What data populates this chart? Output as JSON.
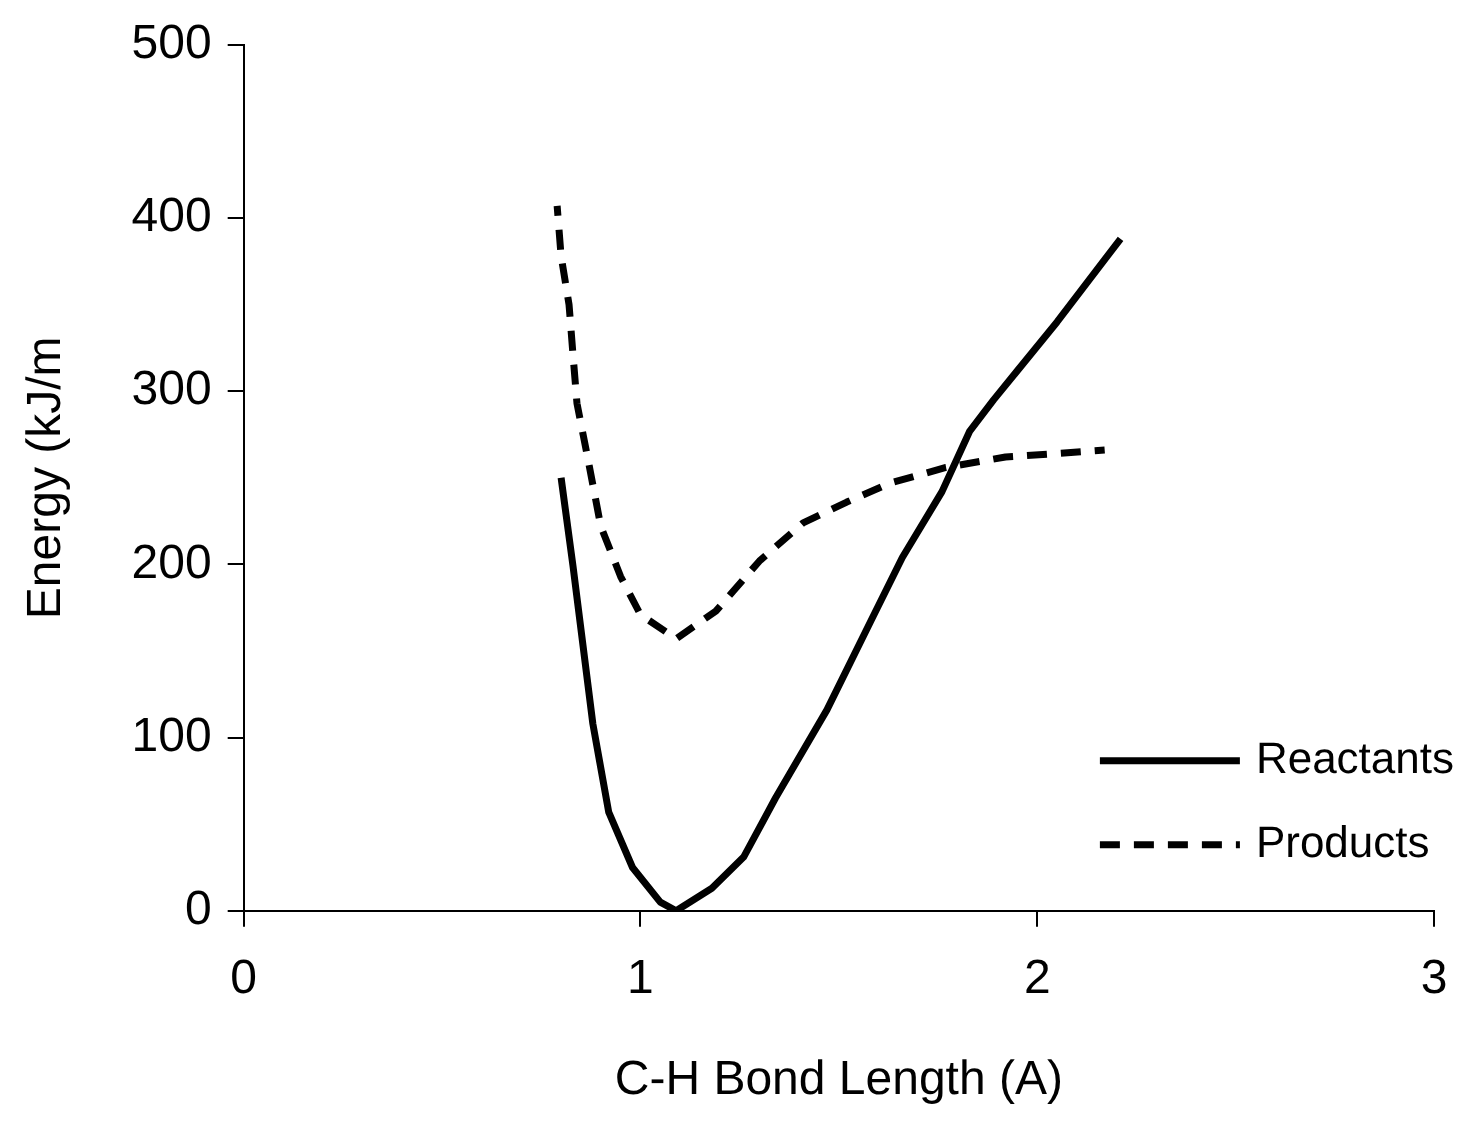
{
  "chart_data": {
    "type": "line",
    "xlabel": "C-H Bond Length (A)",
    "ylabel": "Energy (kJ/m",
    "xlim": [
      0,
      3
    ],
    "xticks": [
      0,
      1,
      2,
      3
    ],
    "ylim": [
      0,
      500
    ],
    "yticks": [
      0,
      100,
      200,
      300,
      400,
      500
    ],
    "grid": false,
    "legend": "bottom right",
    "marker": "none",
    "series": [
      {
        "name": "Reactants",
        "color": "#000000",
        "line_style": "solid",
        "x": [
          0.8,
          0.83,
          0.88,
          0.92,
          0.98,
          1.05,
          1.09,
          1.18,
          1.26,
          1.34,
          1.47,
          1.58,
          1.66,
          1.76,
          1.83,
          1.89,
          2.05,
          2.21
        ],
        "values": [
          250,
          199,
          108,
          57,
          25,
          5,
          0,
          13,
          31,
          65,
          116,
          167,
          204,
          242,
          277,
          295,
          340,
          388
        ]
      },
      {
        "name": "Products",
        "color": "#000000",
        "line_style": "dashed",
        "x": [
          0.79,
          0.8,
          0.82,
          0.83,
          0.84,
          0.87,
          0.9,
          0.95,
          1.0,
          1.09,
          1.19,
          1.3,
          1.41,
          1.52,
          1.63,
          1.77,
          1.92,
          2.05,
          2.17
        ],
        "values": [
          407,
          378,
          350,
          321,
          293,
          258,
          222,
          193,
          171,
          157,
          173,
          202,
          224,
          236,
          247,
          256,
          262,
          264,
          266
        ]
      }
    ]
  }
}
